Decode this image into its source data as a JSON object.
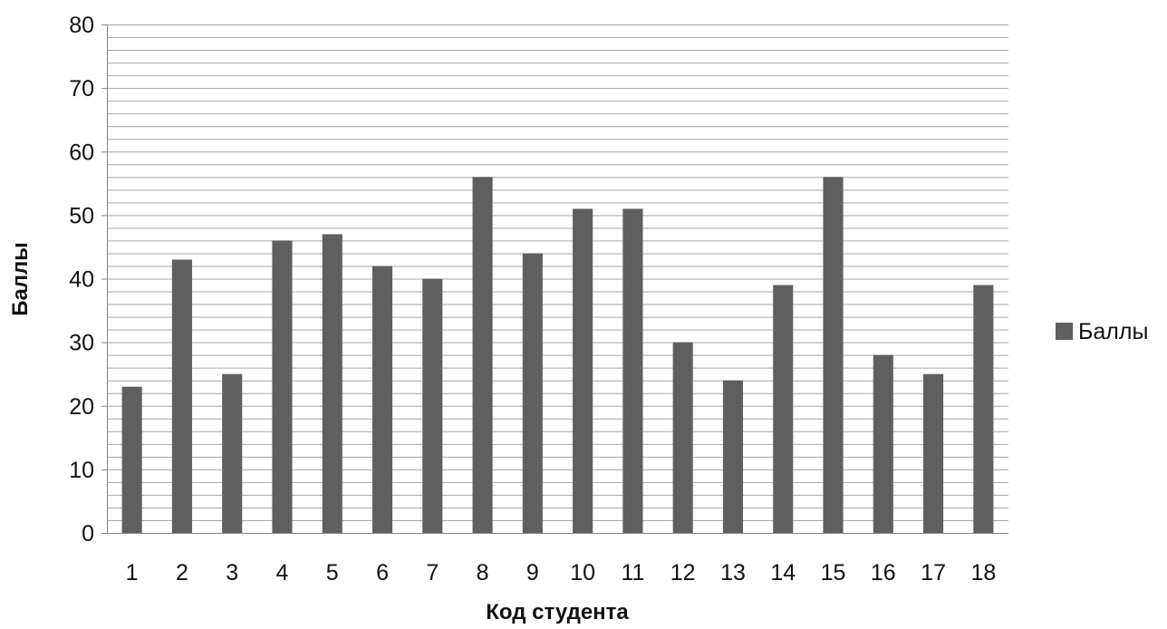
{
  "chart_data": {
    "type": "bar",
    "categories": [
      "1",
      "2",
      "3",
      "4",
      "5",
      "6",
      "7",
      "8",
      "9",
      "10",
      "11",
      "12",
      "13",
      "14",
      "15",
      "16",
      "17",
      "18"
    ],
    "series": [
      {
        "name": "Баллы",
        "values": [
          23,
          43,
          25,
          46,
          47,
          42,
          40,
          56,
          44,
          51,
          51,
          30,
          24,
          39,
          56,
          28,
          25,
          39
        ]
      }
    ],
    "xlabel": "Код студента",
    "ylabel": "Баллы",
    "ylim": [
      0,
      80
    ],
    "yticks": [
      "0",
      "10",
      "20",
      "30",
      "40",
      "50",
      "60",
      "70",
      "80"
    ],
    "minor_grid_step": 2,
    "grid": true,
    "legend_position": "right",
    "colors": {
      "bar": "#5f5f5f",
      "grid": "#a6a6a6",
      "axis": "#868686"
    }
  }
}
